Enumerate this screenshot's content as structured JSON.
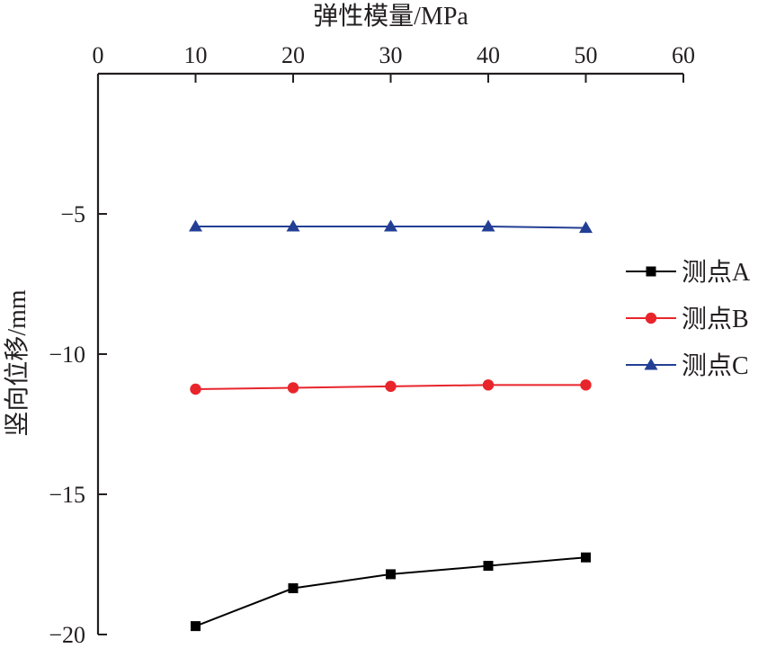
{
  "chart_data": {
    "type": "line",
    "xlabel": "弹性模量/MPa",
    "ylabel": "竖向位移/mm",
    "x_axis_position": "top",
    "xlim": [
      0,
      60
    ],
    "ylim": [
      -20,
      0
    ],
    "x_ticks": [
      0,
      10,
      20,
      30,
      40,
      50,
      60
    ],
    "y_ticks": [
      -5,
      -10,
      -15,
      -20
    ],
    "x_tick_labels": [
      "0",
      "10",
      "20",
      "30",
      "40",
      "50",
      "60"
    ],
    "y_tick_labels": [
      "−5",
      "−10",
      "−15",
      "−20"
    ],
    "grid": false,
    "legend_position": "right",
    "x": [
      10,
      20,
      30,
      40,
      50
    ],
    "series": [
      {
        "name": "测点A",
        "marker": "square",
        "color": "#000000",
        "values": [
          -19.7,
          -18.35,
          -17.85,
          -17.55,
          -17.25
        ]
      },
      {
        "name": "测点B",
        "marker": "circle",
        "color": "#e8252b",
        "values": [
          -11.25,
          -11.2,
          -11.15,
          -11.1,
          -11.1
        ]
      },
      {
        "name": "测点C",
        "marker": "triangle",
        "color": "#233f94",
        "values": [
          -5.45,
          -5.45,
          -5.45,
          -5.45,
          -5.5
        ]
      }
    ]
  }
}
